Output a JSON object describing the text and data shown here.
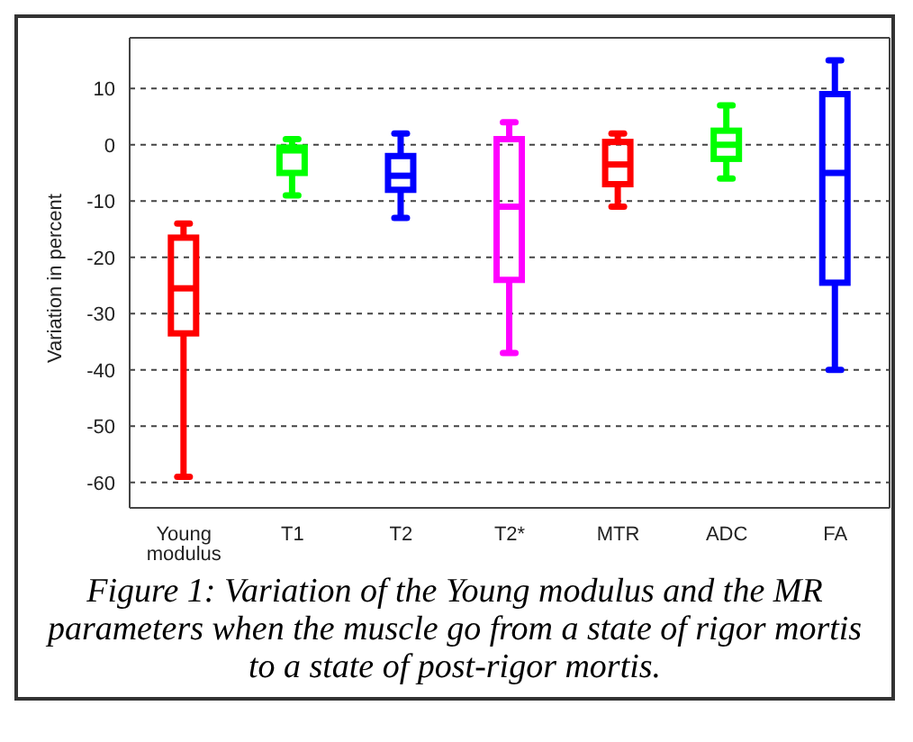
{
  "chart_data": {
    "type": "box",
    "ylabel": "Variation in percent",
    "categories": [
      "Young modulus",
      "T1",
      "T2",
      "T2*",
      "MTR",
      "ADC",
      "FA"
    ],
    "colors": [
      "#ff0000",
      "#00ff00",
      "#0000ff",
      "#ff00ff",
      "#ff0000",
      "#00ff00",
      "#0000ff"
    ],
    "boxes": [
      {
        "low": -59,
        "q1": -33.5,
        "median": -25.5,
        "q3": -16.5,
        "high": -14
      },
      {
        "low": -9,
        "q1": -5,
        "median": -1,
        "q3": -0.5,
        "high": 1
      },
      {
        "low": -13,
        "q1": -8,
        "median": -5.5,
        "q3": -2,
        "high": 2
      },
      {
        "low": -37,
        "q1": -24,
        "median": -11,
        "q3": 1,
        "high": 4
      },
      {
        "low": -11,
        "q1": -7,
        "median": -3.5,
        "q3": 0.5,
        "high": 2
      },
      {
        "low": -6,
        "q1": -2.5,
        "median": 0,
        "q3": 2.5,
        "high": 7
      },
      {
        "low": -40,
        "q1": -24.5,
        "median": -5,
        "q3": 9,
        "high": 15
      }
    ],
    "ylim": [
      -64.5,
      19
    ],
    "yticks": [
      -60,
      -50,
      -40,
      -30,
      -20,
      -10,
      0,
      10
    ],
    "grid": "y",
    "annotations": [
      "Figure 1: Variation of the Young modulus and the MR parameters when the muscle go from a state of rigor mortis to a state of post-rigor mortis."
    ]
  }
}
